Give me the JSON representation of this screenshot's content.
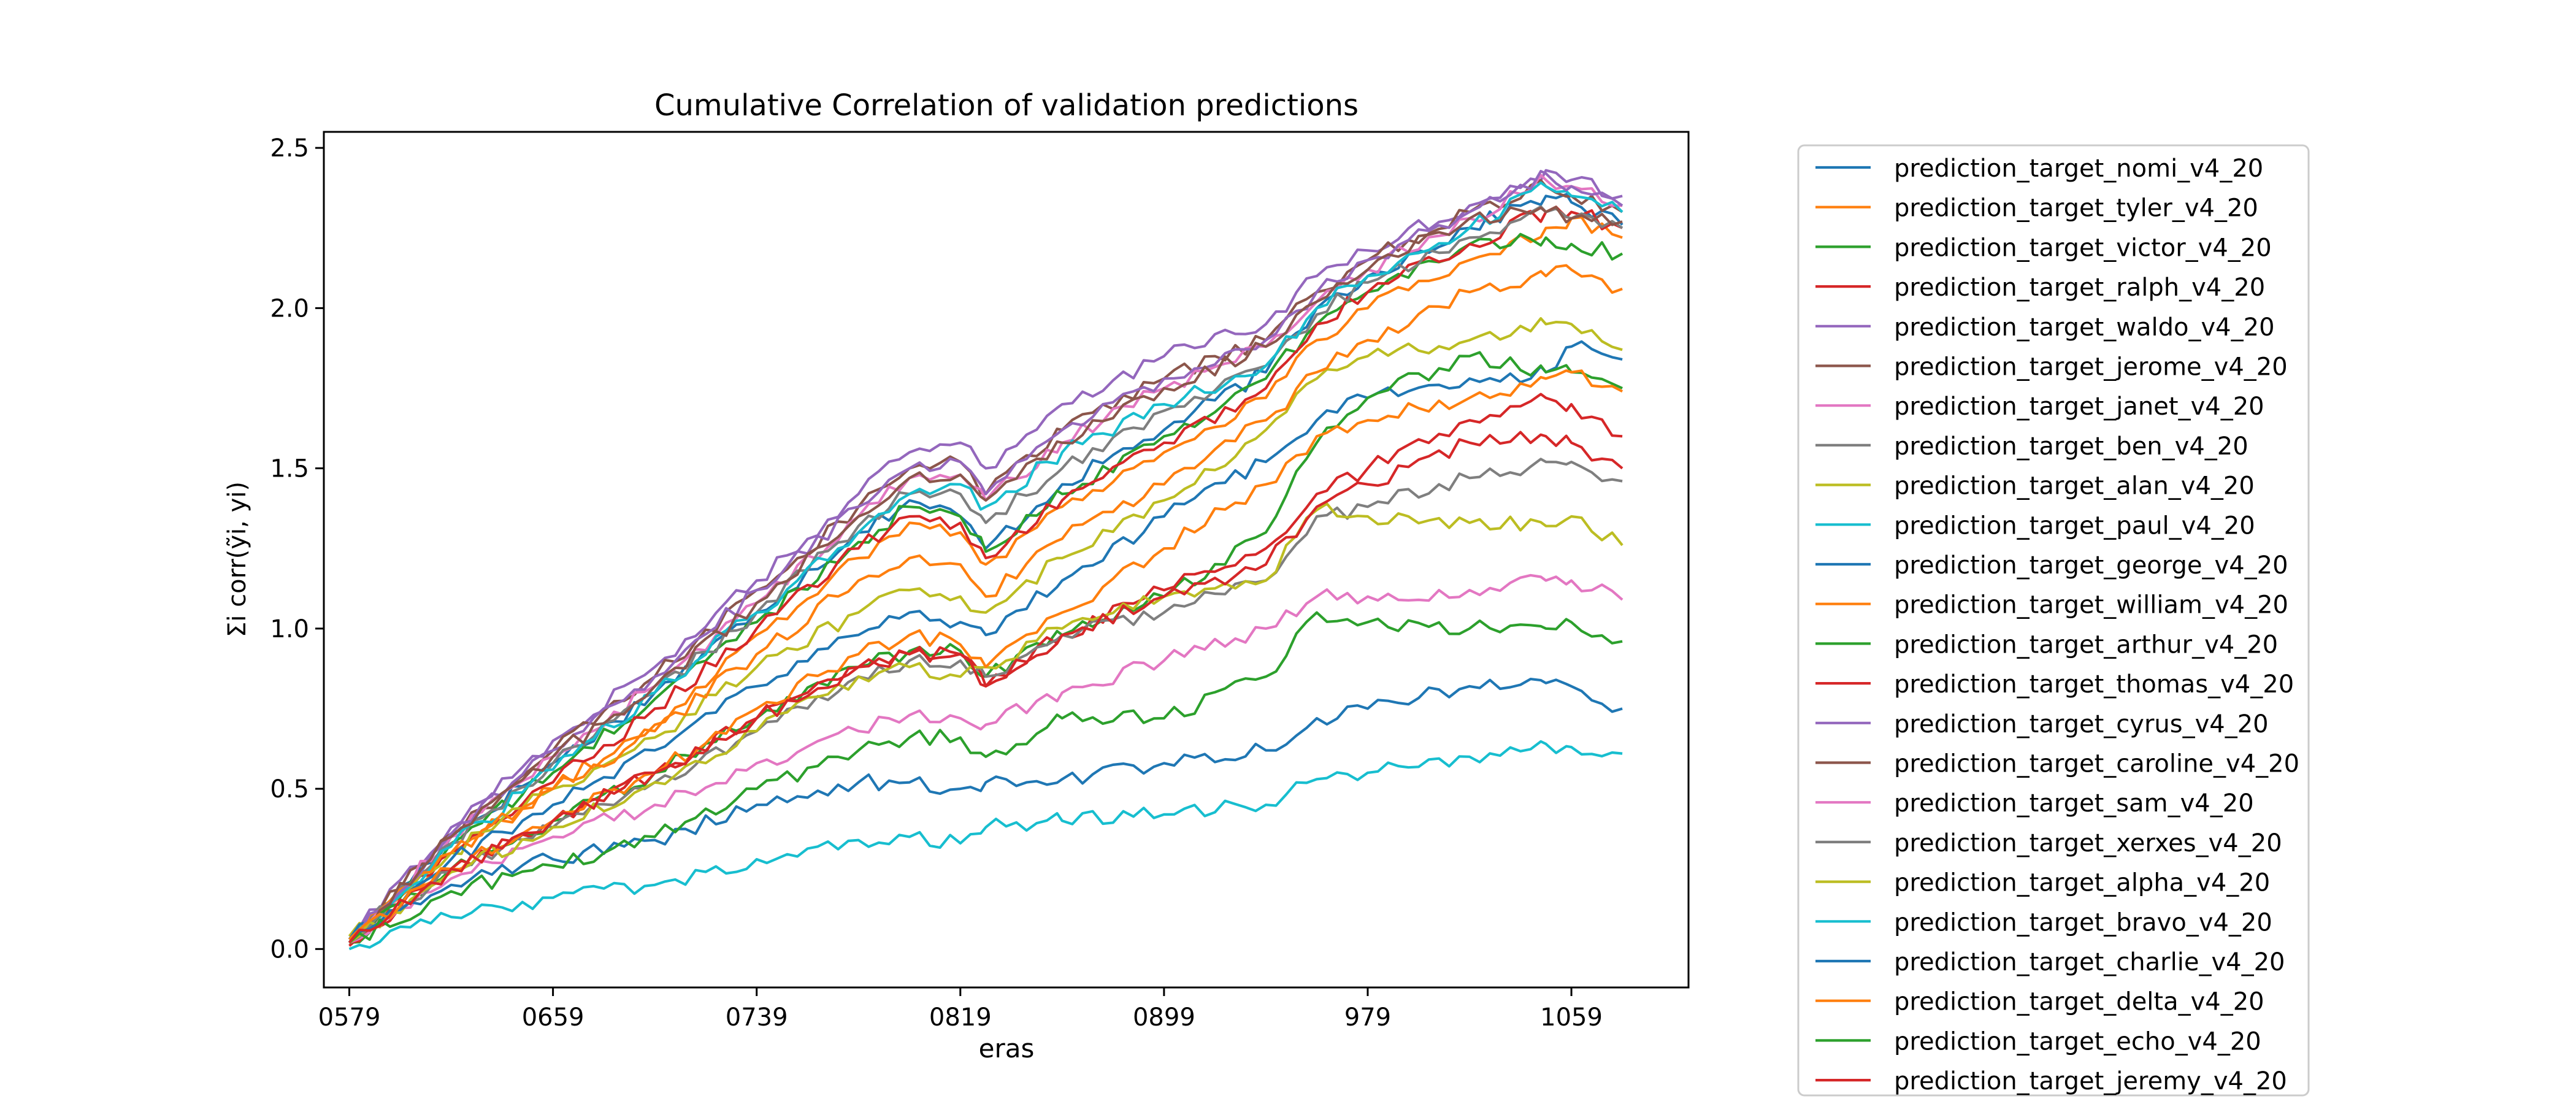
{
  "chart_data": {
    "type": "line",
    "title": "Cumulative Correlation of validation predictions",
    "xlabel": "eras",
    "ylabel": "Σi corr(ỹi, yi)",
    "x_range": [
      569,
      1105
    ],
    "ylim": [
      -0.12,
      2.55
    ],
    "x_ticks": [
      579,
      659,
      739,
      819,
      899,
      979,
      1059
    ],
    "x_tick_labels": [
      "0579",
      "0659",
      "0739",
      "0819",
      "0899",
      "979",
      "1059"
    ],
    "y_ticks": [
      0.0,
      0.5,
      1.0,
      1.5,
      2.0,
      2.5
    ],
    "y_tick_labels": [
      "0.0",
      "0.5",
      "1.0",
      "1.5",
      "2.0",
      "2.5"
    ],
    "grid": false,
    "legend_position": "outside-right",
    "colors": [
      "#1f77b4",
      "#ff7f0e",
      "#2ca02c",
      "#d62728",
      "#9467bd",
      "#8c564b",
      "#e377c2",
      "#7f7f7f",
      "#bcbd22",
      "#17becf"
    ],
    "anchor_x": [
      579,
      619,
      659,
      699,
      739,
      779,
      799,
      819,
      829,
      859,
      899,
      939,
      959,
      979,
      1019,
      1049,
      1059,
      1079
    ],
    "series": [
      {
        "name": "prediction_target_nomi_v4_20",
        "values": [
          0.02,
          0.35,
          0.58,
          0.8,
          1.05,
          1.3,
          1.4,
          1.35,
          1.25,
          1.45,
          1.62,
          1.8,
          2.0,
          2.1,
          2.25,
          2.35,
          2.33,
          2.26
        ]
      },
      {
        "name": "prediction_target_tyler_v4_20",
        "values": [
          0.03,
          0.3,
          0.5,
          0.7,
          0.98,
          1.22,
          1.33,
          1.3,
          1.2,
          1.38,
          1.55,
          1.72,
          1.9,
          2.0,
          2.15,
          2.25,
          2.28,
          2.22
        ]
      },
      {
        "name": "prediction_target_victor_v4_20",
        "values": [
          0.02,
          0.33,
          0.55,
          0.78,
          1.02,
          1.27,
          1.38,
          1.35,
          1.24,
          1.42,
          1.6,
          1.78,
          1.95,
          2.05,
          2.2,
          2.22,
          2.2,
          2.17
        ]
      },
      {
        "name": "prediction_target_ralph_v4_20",
        "values": [
          0.01,
          0.3,
          0.52,
          0.75,
          1.0,
          1.25,
          1.35,
          1.33,
          1.22,
          1.4,
          1.58,
          1.75,
          1.95,
          2.05,
          2.2,
          2.3,
          2.3,
          2.25
        ]
      },
      {
        "name": "prediction_target_waldo_v4_20",
        "values": [
          0.03,
          0.38,
          0.65,
          0.88,
          1.15,
          1.42,
          1.55,
          1.58,
          1.5,
          1.7,
          1.85,
          1.95,
          2.1,
          2.18,
          2.32,
          2.43,
          2.4,
          2.35
        ]
      },
      {
        "name": "prediction_target_jerome_v4_20",
        "values": [
          0.02,
          0.36,
          0.62,
          0.85,
          1.12,
          1.38,
          1.5,
          1.52,
          1.42,
          1.62,
          1.78,
          1.9,
          2.05,
          2.15,
          2.3,
          2.38,
          2.35,
          2.3
        ]
      },
      {
        "name": "prediction_target_janet_v4_20",
        "values": [
          0.02,
          0.35,
          0.6,
          0.82,
          1.08,
          1.35,
          1.47,
          1.48,
          1.4,
          1.58,
          1.75,
          1.88,
          2.02,
          2.12,
          2.28,
          2.4,
          2.38,
          2.32
        ]
      },
      {
        "name": "prediction_target_ben_v4_20",
        "values": [
          0.02,
          0.33,
          0.58,
          0.8,
          1.05,
          1.32,
          1.42,
          1.42,
          1.33,
          1.5,
          1.68,
          1.82,
          1.98,
          2.08,
          2.22,
          2.3,
          2.28,
          2.25
        ]
      },
      {
        "name": "prediction_target_alan_v4_20",
        "values": [
          0.04,
          0.3,
          0.5,
          0.66,
          0.88,
          1.05,
          1.12,
          1.1,
          1.05,
          1.22,
          1.4,
          1.62,
          1.78,
          1.85,
          1.9,
          1.95,
          1.95,
          1.87
        ]
      },
      {
        "name": "prediction_target_paul_v4_20",
        "values": [
          0.02,
          0.32,
          0.56,
          0.8,
          1.05,
          1.3,
          1.42,
          1.45,
          1.38,
          1.55,
          1.7,
          1.82,
          2.0,
          2.1,
          2.25,
          2.38,
          2.35,
          2.3
        ]
      },
      {
        "name": "prediction_target_george_v4_20",
        "values": [
          0.03,
          0.28,
          0.45,
          0.62,
          0.82,
          0.98,
          1.05,
          1.02,
          0.98,
          1.15,
          1.35,
          1.52,
          1.65,
          1.72,
          1.78,
          1.8,
          1.88,
          1.84
        ]
      },
      {
        "name": "prediction_target_william_v4_20",
        "values": [
          0.03,
          0.3,
          0.5,
          0.68,
          0.92,
          1.15,
          1.22,
          1.2,
          1.1,
          1.28,
          1.45,
          1.65,
          1.8,
          1.9,
          2.05,
          2.1,
          2.12,
          2.06
        ]
      },
      {
        "name": "prediction_target_arthur_v4_20",
        "values": [
          0.02,
          0.25,
          0.4,
          0.55,
          0.72,
          0.88,
          0.93,
          0.93,
          0.85,
          0.98,
          1.1,
          1.3,
          1.58,
          1.72,
          1.85,
          1.8,
          1.8,
          1.75
        ]
      },
      {
        "name": "prediction_target_thomas_v4_20",
        "values": [
          0.02,
          0.25,
          0.4,
          0.55,
          0.72,
          0.88,
          0.92,
          0.92,
          0.82,
          0.98,
          1.12,
          1.25,
          1.42,
          1.5,
          1.65,
          1.72,
          1.7,
          1.6
        ]
      },
      {
        "name": "prediction_target_cyrus_v4_20",
        "values": [
          0.03,
          0.36,
          0.62,
          0.85,
          1.12,
          1.38,
          1.5,
          1.52,
          1.42,
          1.62,
          1.78,
          1.9,
          2.05,
          2.15,
          2.3,
          2.42,
          2.38,
          2.32
        ]
      },
      {
        "name": "prediction_target_caroline_v4_20",
        "values": [
          0.02,
          0.35,
          0.6,
          0.82,
          1.08,
          1.35,
          1.47,
          1.48,
          1.4,
          1.58,
          1.75,
          1.88,
          2.02,
          2.12,
          2.28,
          2.3,
          2.28,
          2.27
        ]
      },
      {
        "name": "prediction_target_sam_v4_20",
        "values": [
          0.02,
          0.22,
          0.35,
          0.45,
          0.58,
          0.68,
          0.73,
          0.72,
          0.7,
          0.8,
          0.9,
          1.0,
          1.1,
          1.1,
          1.12,
          1.15,
          1.15,
          1.09
        ]
      },
      {
        "name": "prediction_target_xerxes_v4_20",
        "values": [
          0.02,
          0.24,
          0.38,
          0.52,
          0.68,
          0.85,
          0.9,
          0.9,
          0.85,
          0.98,
          1.05,
          1.15,
          1.35,
          1.38,
          1.47,
          1.52,
          1.52,
          1.46
        ]
      },
      {
        "name": "prediction_target_alpha_v4_20",
        "values": [
          0.02,
          0.24,
          0.38,
          0.52,
          0.68,
          0.85,
          0.88,
          0.85,
          0.88,
          1.0,
          1.1,
          1.15,
          1.37,
          1.35,
          1.33,
          1.32,
          1.35,
          1.26
        ]
      },
      {
        "name": "prediction_target_bravo_v4_20",
        "values": [
          0.0,
          0.1,
          0.16,
          0.2,
          0.28,
          0.34,
          0.35,
          0.33,
          0.38,
          0.4,
          0.42,
          0.45,
          0.53,
          0.55,
          0.6,
          0.64,
          0.63,
          0.61
        ]
      },
      {
        "name": "prediction_target_charlie_v4_20",
        "values": [
          0.03,
          0.2,
          0.28,
          0.34,
          0.45,
          0.52,
          0.52,
          0.5,
          0.52,
          0.53,
          0.58,
          0.62,
          0.72,
          0.75,
          0.82,
          0.83,
          0.82,
          0.75
        ]
      },
      {
        "name": "prediction_target_delta_v4_20",
        "values": [
          0.03,
          0.25,
          0.4,
          0.55,
          0.75,
          0.92,
          0.98,
          0.95,
          0.88,
          1.05,
          1.25,
          1.45,
          1.6,
          1.65,
          1.72,
          1.78,
          1.8,
          1.74
        ]
      },
      {
        "name": "prediction_target_echo_v4_20",
        "values": [
          0.02,
          0.18,
          0.26,
          0.35,
          0.5,
          0.62,
          0.66,
          0.66,
          0.6,
          0.72,
          0.72,
          0.85,
          1.05,
          1.02,
          1.0,
          1.0,
          1.02,
          0.96
        ]
      },
      {
        "name": "prediction_target_jeremy_v4_20",
        "values": [
          0.02,
          0.25,
          0.4,
          0.55,
          0.72,
          0.88,
          0.92,
          0.92,
          0.82,
          0.98,
          1.1,
          1.2,
          1.38,
          1.45,
          1.58,
          1.6,
          1.58,
          1.5
        ]
      }
    ]
  }
}
